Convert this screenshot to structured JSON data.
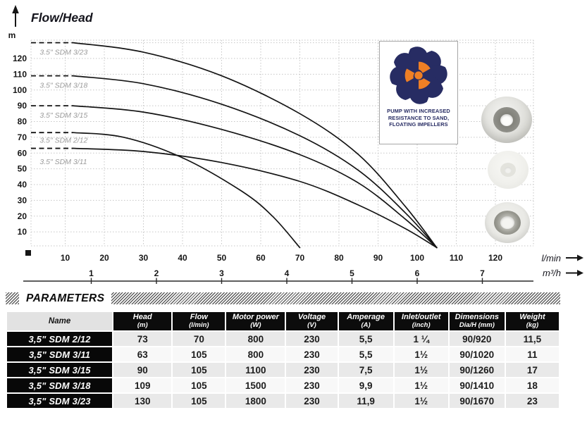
{
  "chart_data": {
    "type": "line",
    "title": "Flow/Head",
    "y_axis": {
      "unit": "m",
      "ticks": [
        10,
        20,
        30,
        40,
        50,
        60,
        70,
        80,
        90,
        100,
        110,
        120
      ],
      "grid_max": 130
    },
    "x_axis_primary": {
      "unit": "l/min",
      "ticks": [
        10,
        20,
        30,
        40,
        50,
        60,
        70,
        80,
        90,
        100,
        110,
        120
      ]
    },
    "x_axis_secondary": {
      "unit": "m³/h",
      "ticks": [
        1,
        2,
        3,
        4,
        5,
        6,
        7
      ],
      "lmin_per_unit": 16.6667
    },
    "grid": "dotted",
    "colors": {
      "curve": "#141414",
      "grid": "#c6c6c6",
      "series_label": "#9b9b9b",
      "axis_text": "#161616"
    },
    "series": [
      {
        "name": "3.5\" SDM 3/23",
        "shutoff_head_m": 130,
        "max_flow_lmin": 105,
        "label_pos": [
          3.5,
          127
        ],
        "points_lmin_m": [
          [
            0,
            130
          ],
          [
            12,
            130
          ],
          [
            30,
            124
          ],
          [
            50,
            109
          ],
          [
            70,
            85
          ],
          [
            85,
            59
          ],
          [
            97,
            26
          ],
          [
            105,
            0
          ]
        ]
      },
      {
        "name": "3.5\" SDM 3/18",
        "shutoff_head_m": 109,
        "max_flow_lmin": 105,
        "label_pos": [
          3.5,
          106
        ],
        "points_lmin_m": [
          [
            0,
            109
          ],
          [
            12,
            109
          ],
          [
            30,
            104
          ],
          [
            50,
            91
          ],
          [
            70,
            71
          ],
          [
            85,
            49
          ],
          [
            97,
            22
          ],
          [
            105,
            0
          ]
        ]
      },
      {
        "name": "3.5\" SDM 3/15",
        "shutoff_head_m": 90,
        "max_flow_lmin": 105,
        "label_pos": [
          3.5,
          87
        ],
        "points_lmin_m": [
          [
            0,
            90
          ],
          [
            12,
            90
          ],
          [
            30,
            86
          ],
          [
            50,
            75
          ],
          [
            70,
            59
          ],
          [
            85,
            41
          ],
          [
            97,
            18
          ],
          [
            105,
            0
          ]
        ]
      },
      {
        "name": "3.5\" SDM 2/12",
        "shutoff_head_m": 73,
        "max_flow_lmin": 70,
        "label_pos": [
          3.5,
          71
        ],
        "points_lmin_m": [
          [
            0,
            73
          ],
          [
            12,
            73
          ],
          [
            25,
            70
          ],
          [
            40,
            57
          ],
          [
            55,
            36
          ],
          [
            63,
            20
          ],
          [
            70,
            0
          ]
        ]
      },
      {
        "name": "3.5\" SDM 3/11",
        "shutoff_head_m": 63,
        "max_flow_lmin": 105,
        "label_pos": [
          3.5,
          57.5
        ],
        "points_lmin_m": [
          [
            0,
            63
          ],
          [
            12,
            63
          ],
          [
            30,
            61
          ],
          [
            50,
            54
          ],
          [
            70,
            42
          ],
          [
            85,
            27
          ],
          [
            97,
            12
          ],
          [
            105,
            0
          ]
        ]
      }
    ]
  },
  "badge": {
    "lines": [
      "PUMP WITH INCREASED",
      "RESISTANCE TO SAND,",
      "FLOATING IMPELLERS"
    ],
    "navy": "#272c63",
    "orange": "#ee7f25"
  },
  "product_photos": [
    "floating-impeller-top-view",
    "impeller-disc-white",
    "impeller-with-steel-ring"
  ],
  "parameters": {
    "title": "PARAMETERS",
    "columns": [
      {
        "label": "Name",
        "unit": ""
      },
      {
        "label": "Head",
        "unit": "(m)"
      },
      {
        "label": "Flow",
        "unit": "(l/min)"
      },
      {
        "label": "Motor power",
        "unit": "(W)"
      },
      {
        "label": "Voltage",
        "unit": "(V)"
      },
      {
        "label": "Amperage",
        "unit": "(A)"
      },
      {
        "label": "Inlet/outlet",
        "unit": "(inch)"
      },
      {
        "label": "Dimensions",
        "unit": "Dia/H (mm)"
      },
      {
        "label": "Weight",
        "unit": "(kg)"
      }
    ],
    "rows": [
      {
        "name": "3,5\" SDM 2/12",
        "values": [
          "73",
          "70",
          "800",
          "230",
          "5,5",
          "1 ¼",
          "90/920",
          "11,5"
        ]
      },
      {
        "name": "3,5\" SDM 3/11",
        "values": [
          "63",
          "105",
          "800",
          "230",
          "5,5",
          "1½",
          "90/1020",
          "11"
        ]
      },
      {
        "name": "3,5\" SDM 3/15",
        "values": [
          "90",
          "105",
          "1100",
          "230",
          "7,5",
          "1½",
          "90/1260",
          "17"
        ]
      },
      {
        "name": "3,5\" SDM 3/18",
        "values": [
          "109",
          "105",
          "1500",
          "230",
          "9,9",
          "1½",
          "90/1410",
          "18"
        ]
      },
      {
        "name": "3,5\" SDM 3/23",
        "values": [
          "130",
          "105",
          "1800",
          "230",
          "11,9",
          "1½",
          "90/1670",
          "23"
        ]
      }
    ]
  }
}
